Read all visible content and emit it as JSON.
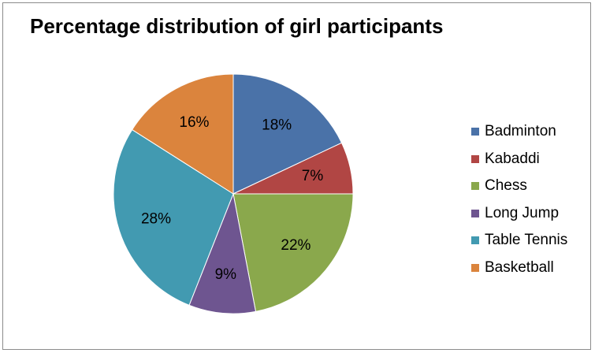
{
  "chart_data": {
    "type": "pie",
    "title": "Percentage distribution of girl participants",
    "categories": [
      "Badminton",
      "Kabaddi",
      "Chess",
      "Long Jump",
      "Table Tennis",
      "Basketball"
    ],
    "values": [
      18,
      7,
      22,
      9,
      28,
      16
    ],
    "labels": [
      "18%",
      "7%",
      "22%",
      "9%",
      "28%",
      "16%"
    ],
    "colors": [
      "#4a72a8",
      "#b14644",
      "#8aa84c",
      "#6e5590",
      "#429ab1",
      "#db843d"
    ],
    "start_angle_deg": 0,
    "direction": "clockwise",
    "legend_position": "right"
  }
}
